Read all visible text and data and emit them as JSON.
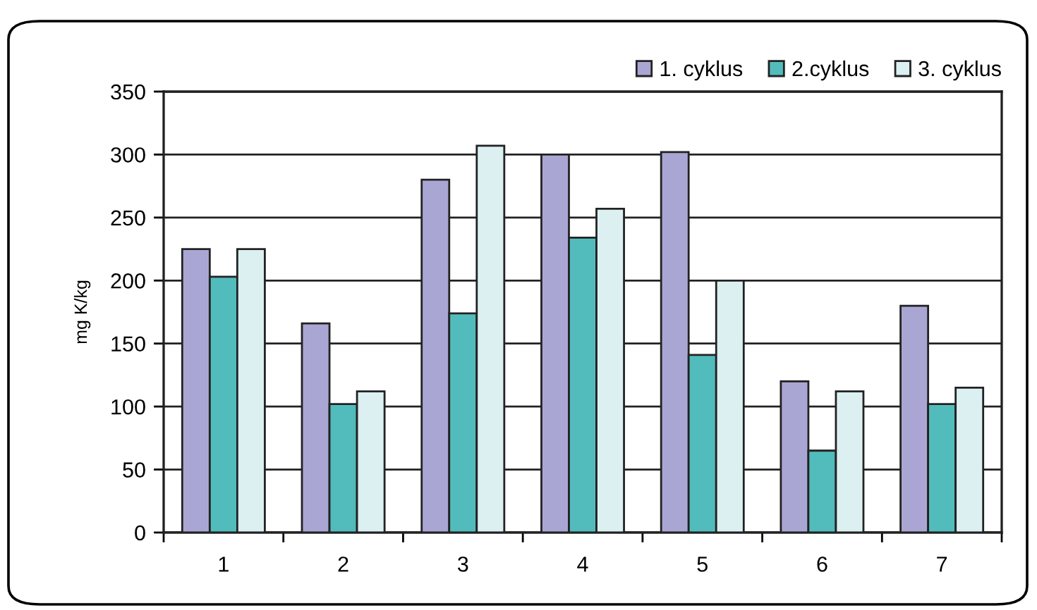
{
  "chart_data": {
    "type": "bar",
    "ylabel": "mg K/kg",
    "categories": [
      "1",
      "2",
      "3",
      "4",
      "5",
      "6",
      "7"
    ],
    "series": [
      {
        "name": "1. cyklus",
        "color": "#aaa6d4",
        "values": [
          225,
          166,
          280,
          300,
          302,
          120,
          180
        ]
      },
      {
        "name": "2.cyklus",
        "color": "#52bcbc",
        "values": [
          203,
          102,
          174,
          234,
          141,
          65,
          102
        ]
      },
      {
        "name": "3. cyklus",
        "color": "#dcf0f2",
        "values": [
          225,
          112,
          307,
          257,
          200,
          112,
          115
        ]
      }
    ],
    "ylim": [
      0,
      350
    ],
    "yticks": [
      0,
      50,
      100,
      150,
      200,
      250,
      300,
      350
    ],
    "grid": "y",
    "legend": "top right"
  }
}
